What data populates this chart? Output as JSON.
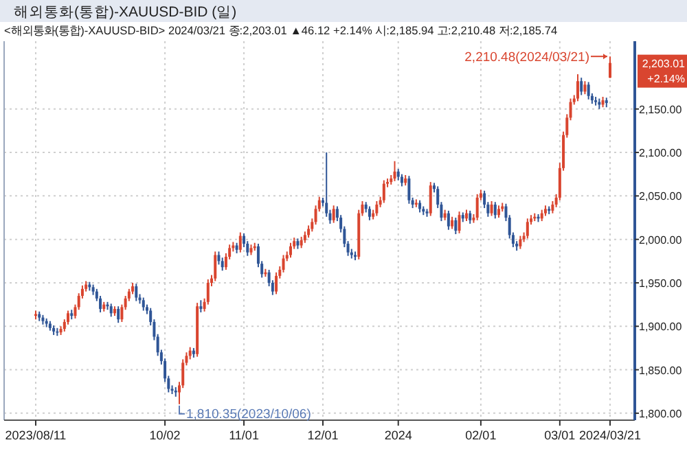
{
  "chart_data": {
    "type": "candlestick",
    "title": "해외통화(통합)-XAUUSD-BID (일)",
    "subtitle": "<해외통화(통합)-XAUUSD-BID> 2024/03/21 종:2,203.01 ▲46.12 +2.14% 시:2,185.94 고:2,210.48 저:2,185.74",
    "categories": [
      "2023/08/11",
      null,
      null,
      null,
      null,
      null,
      null,
      null,
      null,
      null,
      null,
      null,
      null,
      null,
      null,
      null,
      null,
      null,
      null,
      null,
      null,
      null,
      null,
      null,
      null,
      null,
      null,
      null,
      null,
      null,
      null,
      null,
      null,
      null,
      null,
      null,
      "10/02",
      null,
      null,
      null,
      null,
      null,
      null,
      null,
      null,
      null,
      null,
      null,
      null,
      null,
      null,
      null,
      null,
      null,
      null,
      null,
      null,
      null,
      "11/01",
      null,
      null,
      null,
      null,
      null,
      null,
      null,
      null,
      null,
      null,
      null,
      null,
      null,
      null,
      null,
      null,
      null,
      null,
      null,
      null,
      null,
      "12/01",
      null,
      null,
      null,
      null,
      null,
      null,
      null,
      null,
      null,
      null,
      null,
      null,
      null,
      null,
      null,
      null,
      null,
      null,
      null,
      null,
      "2024",
      null,
      null,
      null,
      null,
      null,
      null,
      null,
      null,
      null,
      null,
      null,
      null,
      null,
      null,
      null,
      null,
      null,
      null,
      null,
      null,
      null,
      null,
      "02/01",
      null,
      null,
      null,
      null,
      null,
      null,
      null,
      null,
      null,
      null,
      null,
      null,
      null,
      null,
      null,
      null,
      null,
      null,
      null,
      null,
      null,
      "03/01",
      null,
      null,
      null,
      null,
      null,
      null,
      null,
      null,
      null,
      null,
      null,
      null,
      null,
      "2024/03/21"
    ],
    "ohlc": [
      [
        1912,
        1918,
        1908,
        1914
      ],
      [
        1914,
        1917,
        1906,
        1910
      ],
      [
        1910,
        1913,
        1902,
        1906
      ],
      [
        1906,
        1909,
        1899,
        1903
      ],
      [
        1903,
        1906,
        1895,
        1898
      ],
      [
        1898,
        1901,
        1890,
        1894
      ],
      [
        1894,
        1898,
        1889,
        1893
      ],
      [
        1893,
        1900,
        1890,
        1897
      ],
      [
        1897,
        1908,
        1894,
        1905
      ],
      [
        1905,
        1918,
        1902,
        1915
      ],
      [
        1915,
        1919,
        1908,
        1912
      ],
      [
        1912,
        1925,
        1909,
        1922
      ],
      [
        1922,
        1938,
        1919,
        1935
      ],
      [
        1935,
        1947,
        1932,
        1943
      ],
      [
        1943,
        1952,
        1940,
        1948
      ],
      [
        1948,
        1951,
        1941,
        1945
      ],
      [
        1945,
        1948,
        1936,
        1940
      ],
      [
        1940,
        1943,
        1929,
        1932
      ],
      [
        1932,
        1935,
        1916,
        1920
      ],
      [
        1920,
        1928,
        1917,
        1925
      ],
      [
        1925,
        1928,
        1919,
        1923
      ],
      [
        1923,
        1926,
        1911,
        1915
      ],
      [
        1915,
        1923,
        1912,
        1920
      ],
      [
        1920,
        1923,
        1904,
        1908
      ],
      [
        1908,
        1925,
        1905,
        1922
      ],
      [
        1922,
        1935,
        1919,
        1932
      ],
      [
        1932,
        1943,
        1929,
        1940
      ],
      [
        1940,
        1950,
        1937,
        1946
      ],
      [
        1946,
        1949,
        1929,
        1933
      ],
      [
        1933,
        1937,
        1926,
        1930
      ],
      [
        1930,
        1933,
        1918,
        1922
      ],
      [
        1922,
        1925,
        1914,
        1918
      ],
      [
        1918,
        1921,
        1901,
        1905
      ],
      [
        1905,
        1908,
        1884,
        1888
      ],
      [
        1888,
        1891,
        1866,
        1870
      ],
      [
        1870,
        1873,
        1856,
        1860
      ],
      [
        1860,
        1863,
        1836,
        1840
      ],
      [
        1840,
        1843,
        1824,
        1828
      ],
      [
        1828,
        1832,
        1822,
        1826
      ],
      [
        1826,
        1830,
        1819,
        1824
      ],
      [
        1824,
        1836,
        1810.35,
        1832
      ],
      [
        1832,
        1862,
        1829,
        1858
      ],
      [
        1858,
        1870,
        1855,
        1866
      ],
      [
        1866,
        1876,
        1862,
        1872
      ],
      [
        1872,
        1875,
        1864,
        1868
      ],
      [
        1868,
        1927,
        1865,
        1923
      ],
      [
        1923,
        1930,
        1916,
        1920
      ],
      [
        1920,
        1932,
        1917,
        1928
      ],
      [
        1928,
        1954,
        1925,
        1950
      ],
      [
        1950,
        1959,
        1946,
        1955
      ],
      [
        1955,
        1986,
        1952,
        1982
      ],
      [
        1982,
        1986,
        1971,
        1975
      ],
      [
        1975,
        1979,
        1964,
        1968
      ],
      [
        1968,
        1984,
        1965,
        1980
      ],
      [
        1980,
        1994,
        1977,
        1990
      ],
      [
        1990,
        1997,
        1986,
        1993
      ],
      [
        1993,
        1996,
        1984,
        1988
      ],
      [
        1988,
        2008,
        1985,
        2004
      ],
      [
        2004,
        2007,
        1991,
        1995
      ],
      [
        1995,
        1998,
        1981,
        1985
      ],
      [
        1985,
        1994,
        1982,
        1990
      ],
      [
        1990,
        1996,
        1987,
        1992
      ],
      [
        1992,
        1995,
        1968,
        1972
      ],
      [
        1972,
        1975,
        1956,
        1960
      ],
      [
        1960,
        1966,
        1957,
        1962
      ],
      [
        1962,
        1965,
        1946,
        1950
      ],
      [
        1950,
        1953,
        1936,
        1940
      ],
      [
        1940,
        1962,
        1937,
        1958
      ],
      [
        1958,
        1969,
        1955,
        1965
      ],
      [
        1965,
        1982,
        1962,
        1978
      ],
      [
        1978,
        1986,
        1975,
        1982
      ],
      [
        1982,
        1996,
        1979,
        1992
      ],
      [
        1992,
        2002,
        1989,
        1998
      ],
      [
        1998,
        2001,
        1989,
        1993
      ],
      [
        1993,
        2003,
        1990,
        1999
      ],
      [
        1999,
        2009,
        1996,
        2005
      ],
      [
        2005,
        2016,
        2002,
        2012
      ],
      [
        2012,
        2024,
        2009,
        2020
      ],
      [
        2020,
        2039,
        2017,
        2035
      ],
      [
        2035,
        2049,
        2032,
        2045
      ],
      [
        2045,
        2048,
        2038,
        2042
      ],
      [
        2042,
        2100,
        2026,
        2030
      ],
      [
        2030,
        2034,
        2018,
        2022
      ],
      [
        2022,
        2039,
        2019,
        2035
      ],
      [
        2035,
        2038,
        2021,
        2025
      ],
      [
        2025,
        2028,
        2008,
        2012
      ],
      [
        2012,
        2015,
        1991,
        1995
      ],
      [
        1995,
        1998,
        1981,
        1985
      ],
      [
        1985,
        1989,
        1978,
        1982
      ],
      [
        1982,
        1986,
        1976,
        1980
      ],
      [
        1980,
        2034,
        1977,
        2030
      ],
      [
        2030,
        2044,
        2027,
        2040
      ],
      [
        2040,
        2043,
        2031,
        2035
      ],
      [
        2035,
        2038,
        2022,
        2026
      ],
      [
        2026,
        2034,
        2023,
        2030
      ],
      [
        2030,
        2044,
        2027,
        2040
      ],
      [
        2040,
        2049,
        2037,
        2045
      ],
      [
        2045,
        2068,
        2042,
        2064
      ],
      [
        2064,
        2070,
        2060,
        2066
      ],
      [
        2066,
        2074,
        2063,
        2070
      ],
      [
        2070,
        2090,
        2067,
        2078
      ],
      [
        2078,
        2081,
        2068,
        2072
      ],
      [
        2072,
        2075,
        2061,
        2065
      ],
      [
        2065,
        2074,
        2062,
        2070
      ],
      [
        2070,
        2073,
        2041,
        2045
      ],
      [
        2045,
        2048,
        2036,
        2040
      ],
      [
        2040,
        2046,
        2037,
        2042
      ],
      [
        2042,
        2045,
        2031,
        2035
      ],
      [
        2035,
        2038,
        2028,
        2032
      ],
      [
        2032,
        2035,
        2026,
        2030
      ],
      [
        2030,
        2066,
        2027,
        2062
      ],
      [
        2062,
        2065,
        2054,
        2058
      ],
      [
        2058,
        2061,
        2036,
        2040
      ],
      [
        2040,
        2043,
        2021,
        2025
      ],
      [
        2025,
        2034,
        2022,
        2030
      ],
      [
        2030,
        2033,
        2011,
        2015
      ],
      [
        2015,
        2026,
        2012,
        2022
      ],
      [
        2022,
        2025,
        2006,
        2010
      ],
      [
        2010,
        2032,
        2007,
        2028
      ],
      [
        2028,
        2031,
        2020,
        2024
      ],
      [
        2024,
        2034,
        2021,
        2030
      ],
      [
        2030,
        2033,
        2018,
        2022
      ],
      [
        2022,
        2029,
        2019,
        2025
      ],
      [
        2025,
        2052,
        2022,
        2048
      ],
      [
        2048,
        2057,
        2045,
        2053
      ],
      [
        2053,
        2056,
        2036,
        2040
      ],
      [
        2040,
        2043,
        2026,
        2030
      ],
      [
        2030,
        2044,
        2027,
        2040
      ],
      [
        2040,
        2043,
        2024,
        2028
      ],
      [
        2028,
        2039,
        2025,
        2035
      ],
      [
        2035,
        2042,
        2032,
        2038
      ],
      [
        2038,
        2041,
        2021,
        2025
      ],
      [
        2025,
        2028,
        2001,
        2005
      ],
      [
        2005,
        2008,
        1991,
        1995
      ],
      [
        1995,
        1998,
        1987,
        1992
      ],
      [
        1992,
        2004,
        1989,
        2000
      ],
      [
        2000,
        2008,
        1997,
        2004
      ],
      [
        2004,
        2024,
        2001,
        2020
      ],
      [
        2020,
        2028,
        2017,
        2024
      ],
      [
        2024,
        2030,
        2021,
        2026
      ],
      [
        2026,
        2029,
        2020,
        2024
      ],
      [
        2024,
        2034,
        2021,
        2030
      ],
      [
        2030,
        2039,
        2027,
        2035
      ],
      [
        2035,
        2038,
        2029,
        2033
      ],
      [
        2033,
        2044,
        2030,
        2040
      ],
      [
        2040,
        2052,
        2037,
        2048
      ],
      [
        2048,
        2088,
        2045,
        2082
      ],
      [
        2082,
        2124,
        2079,
        2120
      ],
      [
        2120,
        2144,
        2117,
        2140
      ],
      [
        2140,
        2162,
        2137,
        2158
      ],
      [
        2158,
        2166,
        2155,
        2162
      ],
      [
        2162,
        2190,
        2159,
        2182
      ],
      [
        2182,
        2186,
        2166,
        2170
      ],
      [
        2170,
        2182,
        2167,
        2178
      ],
      [
        2178,
        2181,
        2161,
        2165
      ],
      [
        2165,
        2168,
        2156,
        2160
      ],
      [
        2160,
        2164,
        2154,
        2158
      ],
      [
        2158,
        2162,
        2150,
        2155
      ],
      [
        2155,
        2164,
        2152,
        2160
      ],
      [
        2160,
        2163,
        2152,
        2156.89
      ],
      [
        2185.94,
        2210.48,
        2185.74,
        2203.01
      ]
    ],
    "colors": [
      "#d9452f",
      "#2f5596",
      "#2f5596",
      "#2f5596",
      "#2f5596",
      "#2f5596",
      "#2f5596",
      "#d9452f",
      "#d9452f",
      "#d9452f",
      "#2f5596",
      "#d9452f",
      "#d9452f",
      "#d9452f",
      "#d9452f",
      "#2f5596",
      "#2f5596",
      "#2f5596",
      "#2f5596",
      "#d9452f",
      "#2f5596",
      "#2f5596",
      "#d9452f",
      "#2f5596",
      "#d9452f",
      "#d9452f",
      "#d9452f",
      "#d9452f",
      "#2f5596",
      "#2f5596",
      "#2f5596",
      "#2f5596",
      "#2f5596",
      "#2f5596",
      "#2f5596",
      "#2f5596",
      "#2f5596",
      "#2f5596",
      "#2f5596",
      "#2f5596",
      "#d9452f",
      "#d9452f",
      "#d9452f",
      "#d9452f",
      "#2f5596",
      "#d9452f",
      "#2f5596",
      "#d9452f",
      "#d9452f",
      "#d9452f",
      "#d9452f",
      "#2f5596",
      "#2f5596",
      "#d9452f",
      "#d9452f",
      "#d9452f",
      "#2f5596",
      "#d9452f",
      "#2f5596",
      "#2f5596",
      "#d9452f",
      "#d9452f",
      "#2f5596",
      "#2f5596",
      "#d9452f",
      "#2f5596",
      "#2f5596",
      "#d9452f",
      "#d9452f",
      "#d9452f",
      "#d9452f",
      "#d9452f",
      "#d9452f",
      "#2f5596",
      "#d9452f",
      "#d9452f",
      "#d9452f",
      "#d9452f",
      "#d9452f",
      "#d9452f",
      "#2f5596",
      "#2f5596",
      "#2f5596",
      "#d9452f",
      "#2f5596",
      "#2f5596",
      "#2f5596",
      "#2f5596",
      "#2f5596",
      "#2f5596",
      "#d9452f",
      "#d9452f",
      "#2f5596",
      "#2f5596",
      "#d9452f",
      "#d9452f",
      "#d9452f",
      "#d9452f",
      "#d9452f",
      "#d9452f",
      "#d9452f",
      "#2f5596",
      "#2f5596",
      "#d9452f",
      "#2f5596",
      "#2f5596",
      "#d9452f",
      "#2f5596",
      "#2f5596",
      "#2f5596",
      "#d9452f",
      "#2f5596",
      "#2f5596",
      "#2f5596",
      "#d9452f",
      "#2f5596",
      "#d9452f",
      "#2f5596",
      "#d9452f",
      "#2f5596",
      "#d9452f",
      "#2f5596",
      "#d9452f",
      "#d9452f",
      "#d9452f",
      "#2f5596",
      "#2f5596",
      "#d9452f",
      "#2f5596",
      "#d9452f",
      "#d9452f",
      "#2f5596",
      "#2f5596",
      "#2f5596",
      "#2f5596",
      "#d9452f",
      "#d9452f",
      "#d9452f",
      "#d9452f",
      "#d9452f",
      "#2f5596",
      "#d9452f",
      "#d9452f",
      "#2f5596",
      "#d9452f",
      "#d9452f",
      "#d9452f",
      "#d9452f",
      "#d9452f",
      "#d9452f",
      "#d9452f",
      "#d9452f",
      "#2f5596",
      "#d9452f",
      "#2f5596",
      "#2f5596",
      "#2f5596",
      "#2f5596",
      "#d9452f",
      "#2f5596",
      "#d9452f"
    ],
    "ylim": [
      1792,
      2228
    ],
    "yticks": [
      {
        "value": 1800,
        "label": "1,800.00"
      },
      {
        "value": 1850,
        "label": "1,850.00"
      },
      {
        "value": 1900,
        "label": "1,900.00"
      },
      {
        "value": 1950,
        "label": "1,950.00"
      },
      {
        "value": 2000,
        "label": "2,000.00"
      },
      {
        "value": 2050,
        "label": "2,050.00"
      },
      {
        "value": 2100,
        "label": "2,100.00"
      },
      {
        "value": 2150,
        "label": "2,150.00"
      }
    ],
    "grid": true,
    "annotations": [
      {
        "text": "2,210.48(2024/03/21)",
        "x": "2024/03/21",
        "y": 2210.48
      },
      "1,810.35(2023/10/06)",
      {
        "text": "2,203.01",
        "x": "2024/03/21",
        "y": 2203.01
      },
      "+2.14%"
    ]
  }
}
